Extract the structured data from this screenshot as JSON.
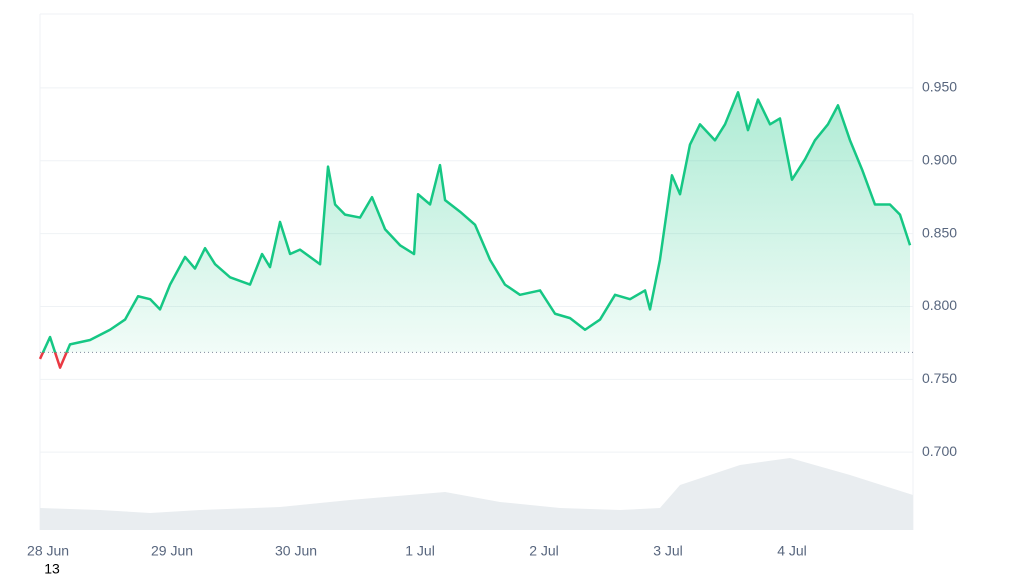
{
  "chart_data": {
    "type": "line",
    "annotation": "13",
    "x": [
      -0.065,
      0.016,
      0.097,
      0.177,
      0.339,
      0.5,
      0.621,
      0.726,
      0.823,
      0.903,
      0.984,
      1.105,
      1.185,
      1.266,
      1.347,
      1.468,
      1.629,
      1.726,
      1.79,
      1.871,
      1.952,
      2.032,
      2.194,
      2.258,
      2.315,
      2.395,
      2.516,
      2.613,
      2.718,
      2.839,
      2.952,
      2.984,
      3.081,
      3.161,
      3.202,
      3.323,
      3.444,
      3.565,
      3.685,
      3.806,
      3.968,
      4.089,
      4.21,
      4.331,
      4.452,
      4.573,
      4.694,
      4.815,
      4.855,
      4.935,
      5.032,
      5.097,
      5.177,
      5.258,
      5.379,
      5.46,
      5.565,
      5.645,
      5.726,
      5.823,
      5.903,
      6.0,
      6.105,
      6.185,
      6.29,
      6.371,
      6.468,
      6.565,
      6.669,
      6.79,
      6.871,
      6.952
    ],
    "series": [
      {
        "color": "#16c784",
        "below_color": "#ea3943",
        "values": [
          0.764,
          0.779,
          0.758,
          0.774,
          0.777,
          0.784,
          0.791,
          0.807,
          0.805,
          0.798,
          0.815,
          0.834,
          0.826,
          0.84,
          0.829,
          0.82,
          0.815,
          0.836,
          0.827,
          0.858,
          0.836,
          0.839,
          0.829,
          0.896,
          0.87,
          0.863,
          0.861,
          0.875,
          0.853,
          0.842,
          0.836,
          0.877,
          0.87,
          0.897,
          0.873,
          0.865,
          0.856,
          0.832,
          0.815,
          0.808,
          0.811,
          0.795,
          0.792,
          0.784,
          0.791,
          0.808,
          0.805,
          0.811,
          0.798,
          0.832,
          0.89,
          0.877,
          0.911,
          0.925,
          0.914,
          0.925,
          0.947,
          0.921,
          0.942,
          0.925,
          0.929,
          0.887,
          0.901,
          0.914,
          0.925,
          0.938,
          0.914,
          0.894,
          0.87,
          0.87,
          0.863,
          0.842
        ]
      }
    ],
    "baseline": 0.7685,
    "volume": {
      "color": "#e9edf0",
      "ylim": [
        0,
        100
      ],
      "x": [
        -0.065,
        0.419,
        0.823,
        1.226,
        1.871,
        2.435,
        3.202,
        3.645,
        4.129,
        4.613,
        4.935,
        5.097,
        5.581,
        5.984,
        6.468,
        6.976
      ],
      "values": [
        22,
        20,
        17,
        20,
        23,
        30,
        38,
        28,
        22,
        20,
        22,
        45,
        65,
        72,
        55,
        35
      ]
    },
    "xlim": [
      -0.065,
      6.976
    ],
    "xticks": [
      {
        "value": 0,
        "label": "28 Jun"
      },
      {
        "value": 1,
        "label": "29 Jun"
      },
      {
        "value": 2,
        "label": "30 Jun"
      },
      {
        "value": 3,
        "label": "1 Jul"
      },
      {
        "value": 4,
        "label": "2 Jul"
      },
      {
        "value": 5,
        "label": "3 Jul"
      },
      {
        "value": 6,
        "label": "4 Jul"
      }
    ],
    "ylim": [
      0.6466,
      1.0007
    ],
    "yticks": [
      {
        "value": 0.7,
        "label": "0.700"
      },
      {
        "value": 0.75,
        "label": "0.750"
      },
      {
        "value": 0.8,
        "label": "0.800"
      },
      {
        "value": 0.85,
        "label": "0.850"
      },
      {
        "value": 0.9,
        "label": "0.900"
      },
      {
        "value": 0.95,
        "label": "0.950"
      }
    ],
    "grid": true
  }
}
